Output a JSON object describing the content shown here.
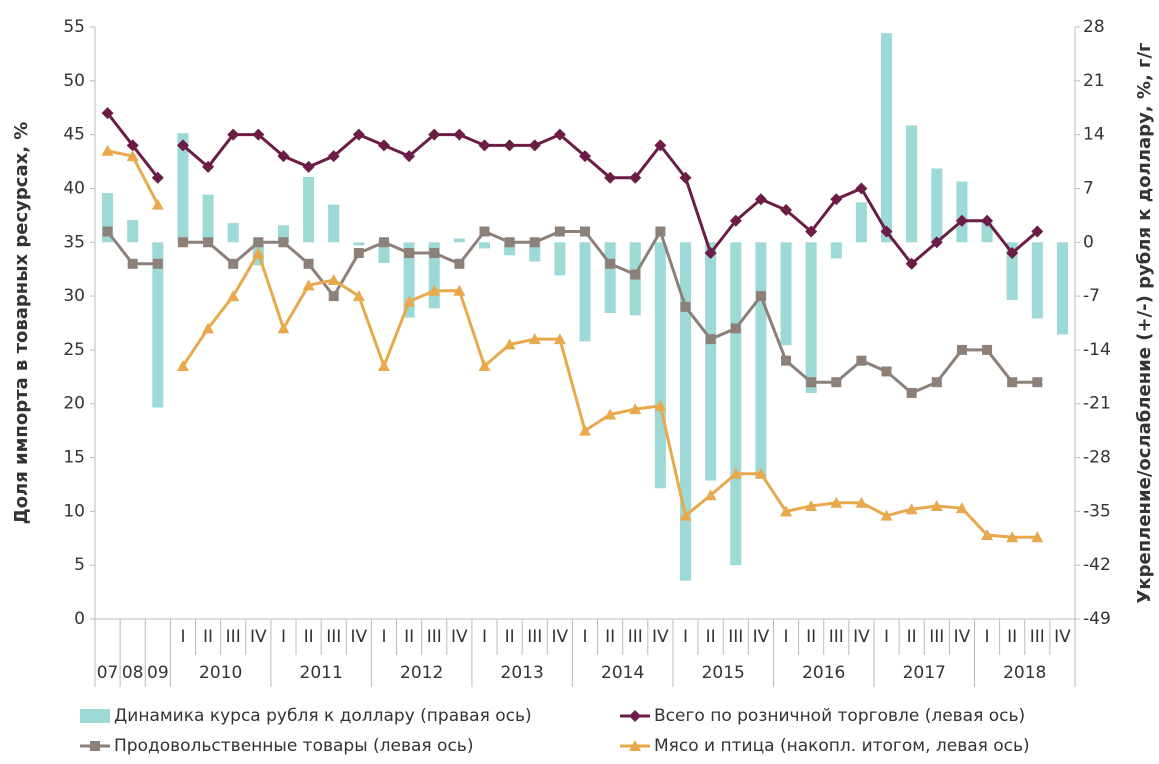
{
  "chart_data": {
    "type": "bar_line",
    "y_label": "Доля импорта в товарных ресурсах, %",
    "y2_label": "Укрепление/ослабление (+/-) рубля к доллару, %, г/г",
    "categories": [
      "07",
      "08",
      "09",
      "I",
      "II",
      "III",
      "IV",
      "I",
      "II",
      "III",
      "IV",
      "I",
      "II",
      "III",
      "IV",
      "I",
      "II",
      "III",
      "IV",
      "I",
      "II",
      "III",
      "IV",
      "I",
      "II",
      "III",
      "IV",
      "I",
      "II",
      "III",
      "IV",
      "I",
      "II",
      "III",
      "IV",
      "I",
      "II",
      "III",
      "IV"
    ],
    "year_groups": [
      "2010",
      "2011",
      "2012",
      "2013",
      "2014",
      "2015",
      "2016",
      "2017",
      "2018"
    ],
    "ylim": [
      0,
      55
    ],
    "yticks": [
      0,
      5,
      10,
      15,
      20,
      25,
      30,
      35,
      40,
      45,
      50,
      55
    ],
    "y2lim": [
      -49,
      28
    ],
    "y2ticks": [
      -49,
      -42,
      -35,
      -28,
      -21,
      -14,
      -7,
      0,
      7,
      14,
      21,
      28
    ],
    "legend": "bottom",
    "series": [
      {
        "name": "Динамика курса рубля к доллару (правая ось)",
        "kind": "bar",
        "axis": "y2",
        "color": "#9dd9d6",
        "values": [
          6.4,
          2.9,
          -21.5,
          14.2,
          6.2,
          2.5,
          -3,
          2.2,
          8.5,
          4.9,
          -0.4,
          -2.7,
          -9.8,
          -8.6,
          0.5,
          -0.8,
          -1.7,
          -2.5,
          -4.3,
          -12.9,
          -9.2,
          -9.5,
          -32,
          -44,
          -31,
          -42,
          -30.7,
          -13.4,
          -19.6,
          -2.1,
          5.2,
          27.2,
          15.2,
          9.6,
          7.9,
          2.6,
          -7.5,
          -9.9,
          -12
        ]
      },
      {
        "name": "Всего по розничной торговле (левая ось)",
        "kind": "line",
        "marker": "diamond",
        "color": "#6b1d45",
        "values": [
          47,
          44,
          41,
          44,
          42,
          45,
          45,
          43,
          42,
          43,
          45,
          44,
          43,
          45,
          45,
          44,
          44,
          44,
          45,
          43,
          41,
          41,
          44,
          41,
          34,
          37,
          39,
          38,
          36,
          39,
          40,
          36,
          33,
          35,
          37,
          37,
          34,
          36,
          null
        ]
      },
      {
        "name": "Продовольственные товары (левая ось)",
        "kind": "line",
        "marker": "square",
        "color": "#8c8079",
        "values": [
          36,
          33,
          33,
          35,
          35,
          33,
          35,
          35,
          33,
          30,
          34,
          35,
          34,
          34,
          33,
          36,
          35,
          35,
          36,
          36,
          33,
          32,
          36,
          29,
          26,
          27,
          30,
          24,
          22,
          22,
          24,
          23,
          21,
          22,
          25,
          25,
          22,
          22,
          null
        ]
      },
      {
        "name": "Мясо и птица (накопл. итогом, левая ось)",
        "kind": "line",
        "marker": "triangle",
        "color": "#e8a94c",
        "values": [
          43.5,
          43,
          38.5,
          23.5,
          27,
          30,
          34,
          27,
          31,
          31.5,
          30,
          23.5,
          29.5,
          30.5,
          30.5,
          23.5,
          25.5,
          26,
          26,
          17.5,
          19,
          19.5,
          19.8,
          9.6,
          11.5,
          13.5,
          13.5,
          10,
          10.5,
          10.8,
          10.8,
          9.6,
          10.2,
          10.5,
          10.3,
          7.8,
          7.6,
          7.6,
          null
        ]
      }
    ]
  }
}
